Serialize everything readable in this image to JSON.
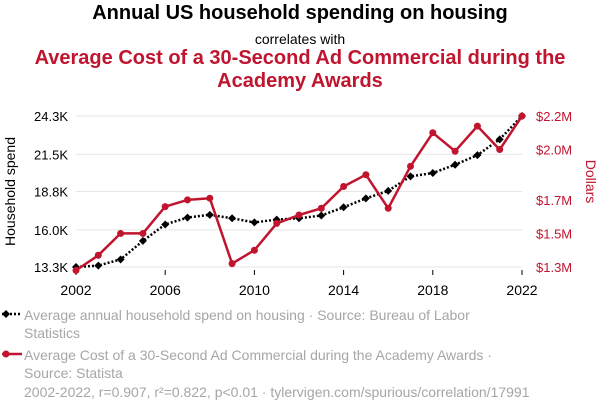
{
  "header": {
    "title": "Annual US household spending on housing",
    "connector": "correlates with",
    "subtitle": "Average Cost of a 30-Second Ad Commercial during the Academy Awards"
  },
  "chart_data": {
    "type": "line",
    "x": [
      2002,
      2003,
      2004,
      2005,
      2006,
      2007,
      2008,
      2009,
      2010,
      2011,
      2012,
      2013,
      2014,
      2015,
      2016,
      2017,
      2018,
      2019,
      2020,
      2021,
      2022
    ],
    "x_ticks": [
      "2002",
      "2006",
      "2010",
      "2014",
      "2018",
      "2022"
    ],
    "xlim": [
      2002,
      2022
    ],
    "series": [
      {
        "name": "Average annual household spend on housing · Source: Bureau of Labor Statistics",
        "axis": "left",
        "color": "#000000",
        "style": "dotted",
        "marker": "diamond",
        "values": [
          13300,
          13400,
          13850,
          15200,
          16400,
          16900,
          17100,
          16850,
          16550,
          16750,
          16850,
          17050,
          17650,
          18300,
          18850,
          19900,
          20150,
          20750,
          21450,
          22600,
          24300
        ]
      },
      {
        "name": "Average Cost of a 30-Second Ad Commercial during the Academy Awards · Source: Statista",
        "axis": "right",
        "color": "#c0142f",
        "style": "solid",
        "marker": "circle",
        "values": [
          1280000,
          1370000,
          1500000,
          1500000,
          1660000,
          1700000,
          1710000,
          1320000,
          1400000,
          1560000,
          1610000,
          1650000,
          1780000,
          1850000,
          1650000,
          1900000,
          2100000,
          1990000,
          2140000,
          2000000,
          2200000
        ]
      }
    ],
    "left_axis": {
      "label": "Household spend",
      "ticks": [
        13300,
        16000,
        18800,
        21500,
        24300
      ],
      "tick_labels": [
        "13.3K",
        "16.0K",
        "18.8K",
        "21.5K",
        "24.3K"
      ],
      "ylim": [
        13300,
        24300
      ]
    },
    "right_axis": {
      "label": "Dollars",
      "ticks": [
        1300000,
        1500000,
        1700000,
        2000000,
        2200000
      ],
      "tick_labels": [
        "$1.3M",
        "$1.5M",
        "$1.7M",
        "$2.0M",
        "$2.2M"
      ],
      "ylim": [
        1300000,
        2200000
      ]
    },
    "grid": "horizontal"
  },
  "legend": {
    "items": [
      {
        "lines": [
          "Average annual household spend on housing · Source: Bureau of Labor",
          "Statistics"
        ],
        "color": "#000000"
      },
      {
        "lines": [
          "Average Cost of a 30-Second Ad Commercial during the Academy Awards ·",
          "Source: Statista"
        ],
        "color": "#c0142f"
      }
    ]
  },
  "footer": {
    "text": "2002-2022, r=0.907, r²=0.822, p<0.01 · tylervigen.com/spurious/correlation/17991"
  }
}
